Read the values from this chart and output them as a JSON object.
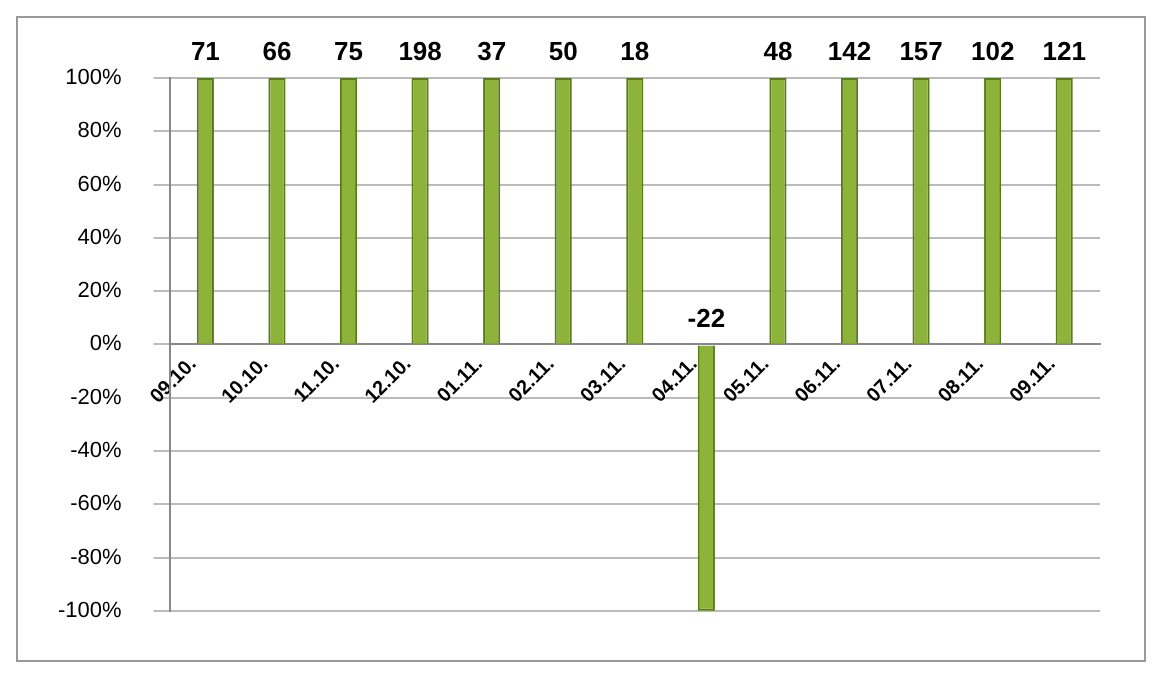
{
  "chart_data": {
    "type": "bar",
    "categories": [
      "09.10.",
      "10.10.",
      "11.10.",
      "12.10.",
      "01.11.",
      "02.11.",
      "03.11.",
      "04.11.",
      "05.11.",
      "06.11.",
      "07.11.",
      "08.11.",
      "09.11."
    ],
    "values": [
      100,
      100,
      100,
      100,
      100,
      100,
      100,
      -100,
      100,
      100,
      100,
      100,
      100
    ],
    "annotations": [
      {
        "text": "71",
        "x": "09.10.",
        "y": 100
      },
      {
        "text": "66",
        "x": "10.10.",
        "y": 100
      },
      {
        "text": "75",
        "x": "11.10.",
        "y": 100
      },
      {
        "text": "198",
        "x": "12.10.",
        "y": 100
      },
      {
        "text": "37",
        "x": "01.11.",
        "y": 100
      },
      {
        "text": "50",
        "x": "02.11.",
        "y": 100
      },
      {
        "text": "18",
        "x": "03.11.",
        "y": 100
      },
      {
        "text": "-22",
        "x": "04.11.",
        "y": 0
      },
      {
        "text": "48",
        "x": "05.11.",
        "y": 100
      },
      {
        "text": "142",
        "x": "06.11.",
        "y": 100
      },
      {
        "text": "157",
        "x": "07.11.",
        "y": 100
      },
      {
        "text": "102",
        "x": "08.11.",
        "y": 100
      },
      {
        "text": "121",
        "x": "09.11.",
        "y": 100
      }
    ],
    "color": "#8db33a",
    "ylim": [
      -100,
      100
    ],
    "yticks": [
      {
        "value": -100,
        "label": "-100%"
      },
      {
        "value": -80,
        "label": "-80%"
      },
      {
        "value": -60,
        "label": "-60%"
      },
      {
        "value": -40,
        "label": "-40%"
      },
      {
        "value": -20,
        "label": "-20%"
      },
      {
        "value": 0,
        "label": "0%"
      },
      {
        "value": 20,
        "label": "20%"
      },
      {
        "value": 40,
        "label": "40%"
      },
      {
        "value": 60,
        "label": "60%"
      },
      {
        "value": 80,
        "label": "80%"
      },
      {
        "value": 100,
        "label": "100%"
      }
    ],
    "grid": "y"
  }
}
